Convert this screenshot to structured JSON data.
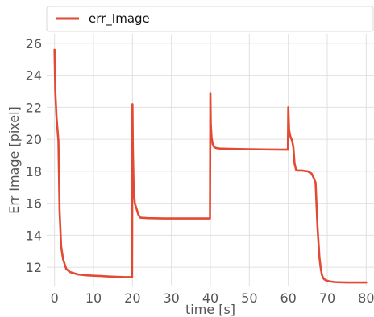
{
  "chart_data": {
    "type": "line",
    "title": "",
    "xlabel": "time [s]",
    "ylabel": "Err Image [pixel]",
    "xlim": [
      -2,
      82
    ],
    "ylim": [
      10.8,
      26.6
    ],
    "xticks": [
      0,
      10,
      20,
      30,
      40,
      50,
      60,
      70,
      80
    ],
    "yticks": [
      12,
      14,
      16,
      18,
      20,
      22,
      24,
      26
    ],
    "grid": true,
    "legend_position": "top-left",
    "series": [
      {
        "name": "err_Image",
        "color": "#e24a33",
        "x": [
          0,
          0.2,
          0.5,
          0.8,
          1.0,
          1.3,
          1.7,
          2.2,
          3.0,
          4.0,
          6.0,
          8.0,
          10.0,
          12.0,
          14.0,
          16.0,
          18.0,
          19.9,
          20.0,
          20.1,
          20.3,
          20.6,
          21.0,
          21.5,
          22.0,
          24.0,
          28.0,
          32.0,
          36.0,
          39.9,
          40.0,
          40.1,
          40.3,
          40.6,
          41.0,
          41.5,
          42.5,
          45.0,
          50.0,
          55.0,
          59.9,
          60.0,
          60.2,
          60.5,
          61.0,
          61.3,
          61.6,
          62.0,
          62.5,
          63.5,
          65.0,
          66.0,
          66.5,
          67.0,
          67.5,
          68.0,
          68.3,
          68.6,
          69.0,
          69.5,
          70.5,
          72.0,
          75.0,
          78.0,
          80.0
        ],
        "y": [
          25.6,
          23.0,
          21.4,
          20.5,
          19.9,
          15.5,
          13.3,
          12.5,
          11.9,
          11.7,
          11.55,
          11.5,
          11.47,
          11.45,
          11.42,
          11.4,
          11.38,
          11.38,
          22.2,
          19.5,
          17.0,
          16.0,
          15.7,
          15.3,
          15.1,
          15.07,
          15.05,
          15.05,
          15.05,
          15.05,
          22.9,
          21.0,
          20.1,
          19.7,
          19.5,
          19.45,
          19.42,
          19.4,
          19.38,
          19.36,
          19.35,
          22.0,
          20.6,
          20.2,
          19.9,
          19.5,
          18.5,
          18.1,
          18.05,
          18.05,
          18.0,
          17.85,
          17.6,
          17.3,
          14.5,
          12.6,
          12.0,
          11.55,
          11.3,
          11.2,
          11.12,
          11.07,
          11.05,
          11.05,
          11.05
        ]
      }
    ]
  }
}
